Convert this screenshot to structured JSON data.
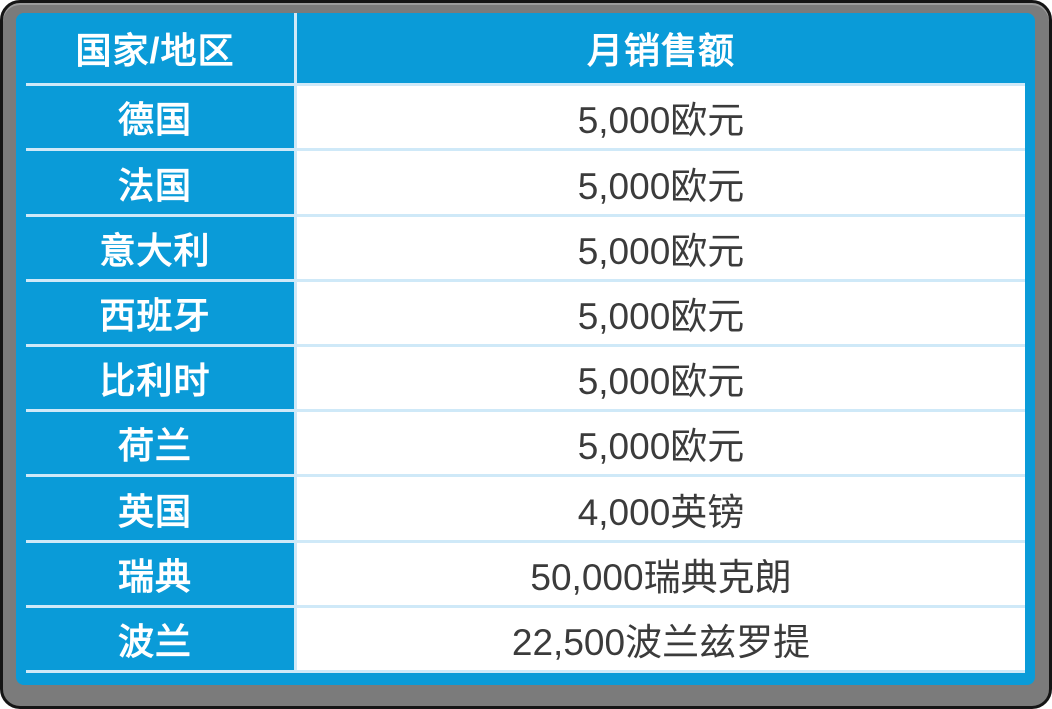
{
  "chart_data": {
    "type": "table",
    "title": "",
    "columns": [
      "国家/地区",
      "月销售额"
    ],
    "rows": [
      [
        "德国",
        "5,000欧元"
      ],
      [
        "法国",
        "5,000欧元"
      ],
      [
        "意大利",
        "5,000欧元"
      ],
      [
        "西班牙",
        "5,000欧元"
      ],
      [
        "比利时",
        "5,000欧元"
      ],
      [
        "荷兰",
        "5,000欧元"
      ],
      [
        "英国",
        "4,000英镑"
      ],
      [
        "瑞典",
        "50,000瑞典克朗"
      ],
      [
        "波兰",
        "22,500波兰兹罗提"
      ]
    ],
    "layout_hints": {
      "header_style": "cyan background, white bold text",
      "first_column_style": "cyan background, white bold text",
      "value_column_style": "white background, dark gray text, centered"
    }
  },
  "table": {
    "header": {
      "country": "国家/地区",
      "sales": "月销售额"
    },
    "rows": [
      {
        "country": "德国",
        "sales": "5,000欧元"
      },
      {
        "country": "法国",
        "sales": "5,000欧元"
      },
      {
        "country": "意大利",
        "sales": "5,000欧元"
      },
      {
        "country": "西班牙",
        "sales": "5,000欧元"
      },
      {
        "country": "比利时",
        "sales": "5,000欧元"
      },
      {
        "country": "荷兰",
        "sales": "5,000欧元"
      },
      {
        "country": "英国",
        "sales": "4,000英镑"
      },
      {
        "country": "瑞典",
        "sales": "50,000瑞典克朗"
      },
      {
        "country": "波兰",
        "sales": "22,500波兰兹罗提"
      }
    ]
  },
  "colors": {
    "accent_cyan": "#0a9bd8",
    "grid_line": "#cfe9f8",
    "header_text": "#ffffff",
    "value_text": "#3b3b3b",
    "frame_gray": "#7b7b7b",
    "frame_edge": "#151515"
  }
}
